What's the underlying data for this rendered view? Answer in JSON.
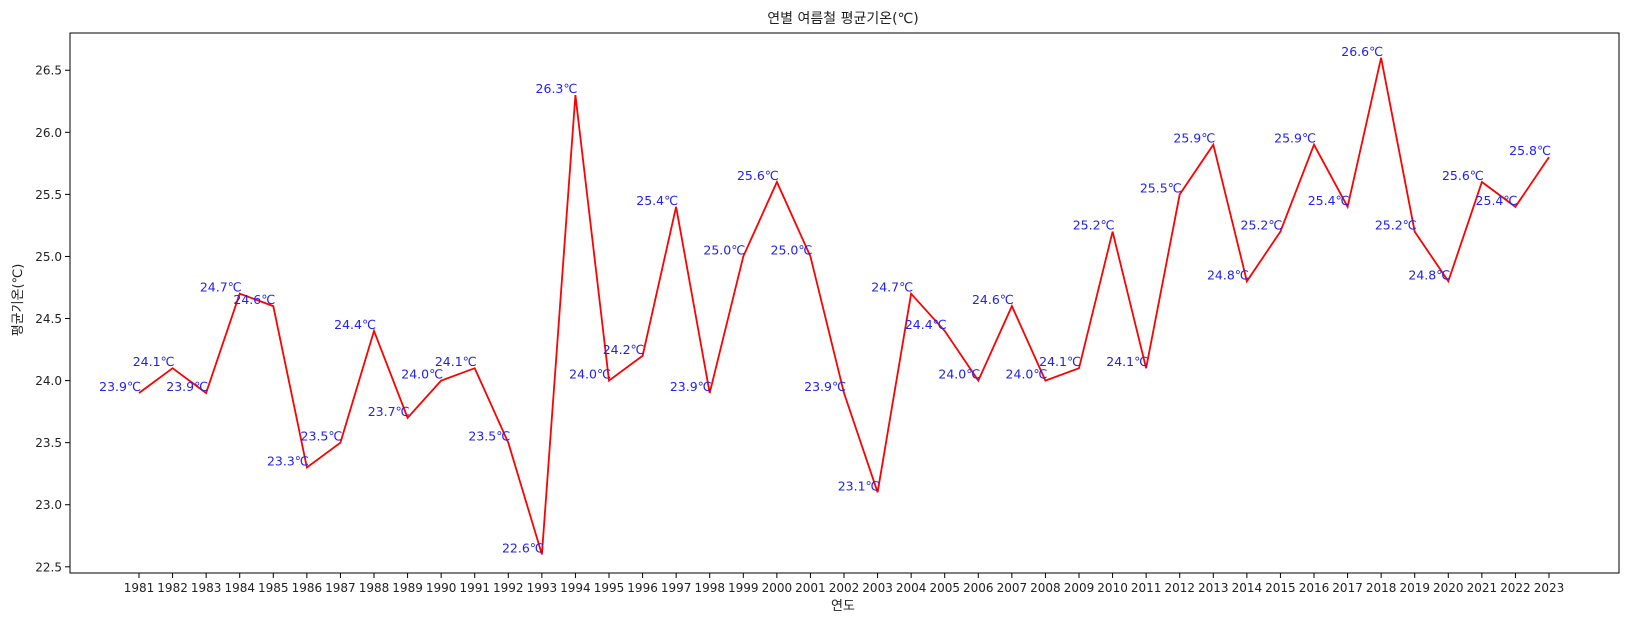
{
  "chart_data": {
    "type": "line",
    "title": "연별 여름철 평균기온(℃)",
    "xlabel": "연도",
    "ylabel": "평균기온(℃)",
    "categories": [
      "1981",
      "1982",
      "1983",
      "1984",
      "1985",
      "1986",
      "1987",
      "1988",
      "1989",
      "1990",
      "1991",
      "1992",
      "1993",
      "1994",
      "1995",
      "1996",
      "1997",
      "1998",
      "1999",
      "2000",
      "2001",
      "2002",
      "2003",
      "2004",
      "2005",
      "2006",
      "2007",
      "2008",
      "2009",
      "2010",
      "2011",
      "2012",
      "2013",
      "2014",
      "2015",
      "2016",
      "2017",
      "2018",
      "2019",
      "2020",
      "2021",
      "2022",
      "2023"
    ],
    "values": [
      23.9,
      24.1,
      23.9,
      24.7,
      24.6,
      23.3,
      23.5,
      24.4,
      23.7,
      24.0,
      24.1,
      23.5,
      22.6,
      26.3,
      24.0,
      24.2,
      25.4,
      23.9,
      25.0,
      25.6,
      25.0,
      23.9,
      23.1,
      24.7,
      24.4,
      24.0,
      24.6,
      24.0,
      24.1,
      25.2,
      24.1,
      25.5,
      25.9,
      24.8,
      25.2,
      25.9,
      25.4,
      26.6,
      25.2,
      24.8,
      25.6,
      25.4,
      25.8
    ],
    "data_labels": [
      "23.9℃",
      "24.1℃",
      "23.9℃",
      "24.7℃",
      "24.6℃",
      "23.3℃",
      "23.5℃",
      "24.4℃",
      "23.7℃",
      "24.0℃",
      "24.1℃",
      "23.5℃",
      "22.6℃",
      "26.3℃",
      "24.0℃",
      "24.2℃",
      "25.4℃",
      "23.9℃",
      "25.0℃",
      "25.6℃",
      "25.0℃",
      "23.9℃",
      "23.1℃",
      "24.7℃",
      "24.4℃",
      "24.0℃",
      "24.6℃",
      "24.0℃",
      "24.1℃",
      "25.2℃",
      "24.1℃",
      "25.5℃",
      "25.9℃",
      "24.8℃",
      "25.2℃",
      "25.9℃",
      "25.4℃",
      "26.6℃",
      "25.2℃",
      "24.8℃",
      "25.6℃",
      "25.4℃",
      "25.8℃"
    ],
    "y_ticks": [
      "22.5",
      "23.0",
      "23.5",
      "24.0",
      "24.5",
      "25.0",
      "25.5",
      "26.0",
      "26.5"
    ],
    "ylim": [
      22.45,
      26.8
    ],
    "grid": false,
    "line_color": "#ff0000",
    "label_color": "#2222ee",
    "axis_color": "#000000"
  }
}
